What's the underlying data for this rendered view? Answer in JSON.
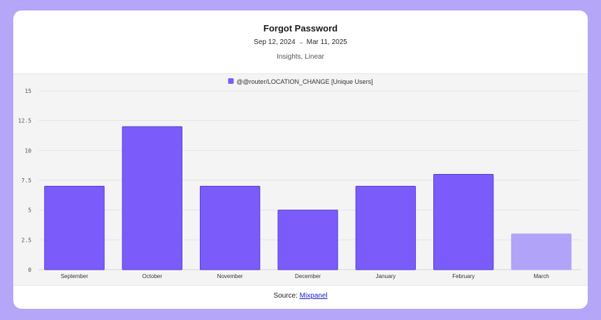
{
  "header": {
    "title": "Forgot Password",
    "date_start": "Sep 12, 2024",
    "date_arrow": "→",
    "date_end": "Mar 11, 2025",
    "subtitle": "Insights, Linear"
  },
  "footer": {
    "source_label": "Source:",
    "source_link": "Mixpanel"
  },
  "colors": {
    "bar": "#7b5cfa",
    "bar_partial": "#b1a3f7",
    "bar_stroke": "#5a3fd6"
  },
  "chart_data": {
    "type": "bar",
    "categories": [
      "September",
      "October",
      "November",
      "December",
      "January",
      "February",
      "March"
    ],
    "series": [
      {
        "name": "@@router/LOCATION_CHANGE [Unique Users]",
        "values": [
          7,
          12,
          7,
          5,
          7,
          8,
          3
        ]
      }
    ],
    "partial_categories": [
      "March"
    ],
    "ylim": [
      0,
      15
    ],
    "yticks": [
      "0",
      "2.5",
      "5",
      "7.5",
      "10",
      "12.5",
      "15"
    ],
    "grid": true,
    "legend": "top-center"
  }
}
